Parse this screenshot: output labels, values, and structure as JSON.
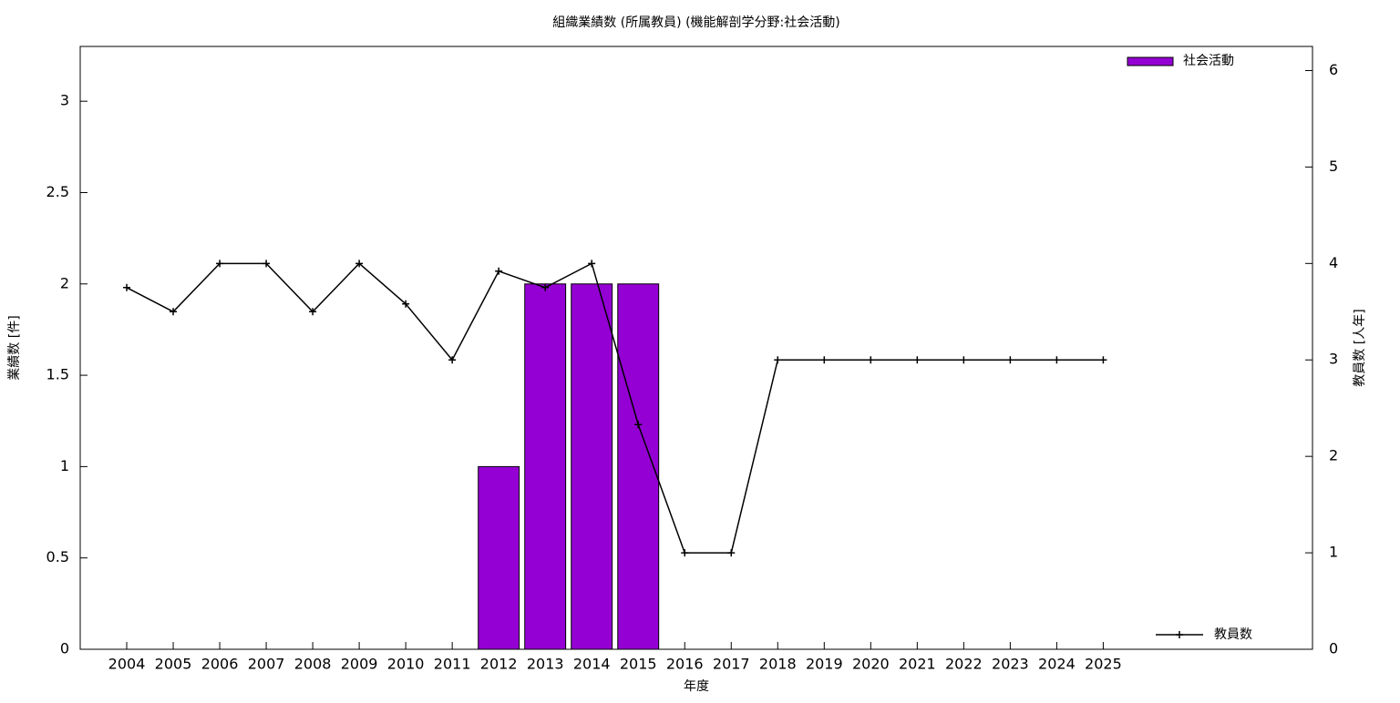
{
  "chart_data": {
    "type": "bar+line",
    "title": "組織業績数 (所属教員) (機能解剖学分野:社会活動)",
    "x_label": "年度",
    "y_label": "業績数 [件]",
    "y2_label": "教員数 [人年]",
    "categories": [
      "2004",
      "2005",
      "2006",
      "2007",
      "2008",
      "2009",
      "2010",
      "2011",
      "2012",
      "2013",
      "2014",
      "2015",
      "2016",
      "2017",
      "2018",
      "2019",
      "2020",
      "2021",
      "2022",
      "2023",
      "2024",
      "2025"
    ],
    "series": [
      {
        "name": "社会活動",
        "type": "bar",
        "color": "#9400d3",
        "values": [
          0,
          0,
          0,
          0,
          0,
          0,
          0,
          0,
          1,
          2,
          2,
          2,
          0,
          0,
          0,
          0,
          0,
          0,
          0,
          0,
          0,
          0
        ]
      },
      {
        "name": "教員数",
        "type": "line",
        "axis": "y2",
        "color": "#000000",
        "values": [
          3.75,
          3.5,
          4,
          4,
          3.5,
          4,
          3.58,
          3,
          3.92,
          3.75,
          4,
          2.33,
          1,
          1,
          3,
          3,
          3,
          3,
          3,
          3,
          3,
          3
        ]
      }
    ],
    "ylim": [
      0,
      3.3
    ],
    "yticks": [
      0,
      0.5,
      1,
      1.5,
      2,
      2.5,
      3
    ],
    "y2lim": [
      0,
      6.25
    ],
    "y2ticks": [
      0,
      1,
      2,
      3,
      4,
      5,
      6
    ],
    "legend": "top-right"
  }
}
